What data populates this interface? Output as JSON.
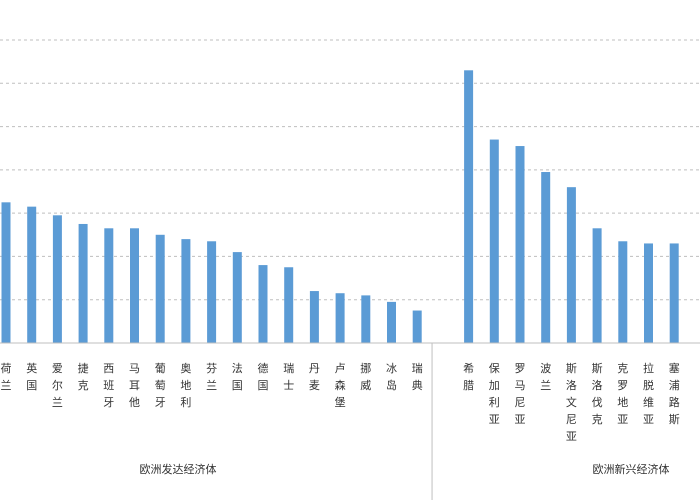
{
  "chart_data": {
    "type": "bar",
    "title": "",
    "xlabel": "",
    "ylabel": "",
    "ylim": [
      0,
      7
    ],
    "grid": true,
    "colors": {
      "bar": "#5B9BD5",
      "grid": "#BFBFBF",
      "axis": "#BFBFBF"
    },
    "groups": [
      {
        "name": "欧洲发达经济体",
        "start": 0,
        "end": 16
      },
      {
        "name": "欧洲新兴经济体",
        "start": 17,
        "end": 24
      }
    ],
    "categories": [
      "荷兰",
      "英国",
      "爱尔兰",
      "捷克",
      "西班牙",
      "马耳他",
      "葡萄牙",
      "奥地利",
      "芬兰",
      "法国",
      "德国",
      "瑞士",
      "丹麦",
      "卢森堡",
      "挪威",
      "冰岛",
      "瑞典",
      "",
      "希腊",
      "保加利亚",
      "罗马尼亚",
      "波兰",
      "斯洛文尼亚",
      "斯洛伐克",
      "克罗地亚",
      "拉脱维亚",
      "塞浦路斯"
    ],
    "values": [
      3.25,
      3.15,
      2.95,
      2.75,
      2.65,
      2.65,
      2.5,
      2.4,
      2.35,
      2.1,
      1.8,
      1.75,
      1.2,
      1.15,
      1.1,
      0.95,
      0.75,
      null,
      6.3,
      4.7,
      4.55,
      3.95,
      3.6,
      2.65,
      2.35,
      2.3,
      2.3
    ]
  }
}
